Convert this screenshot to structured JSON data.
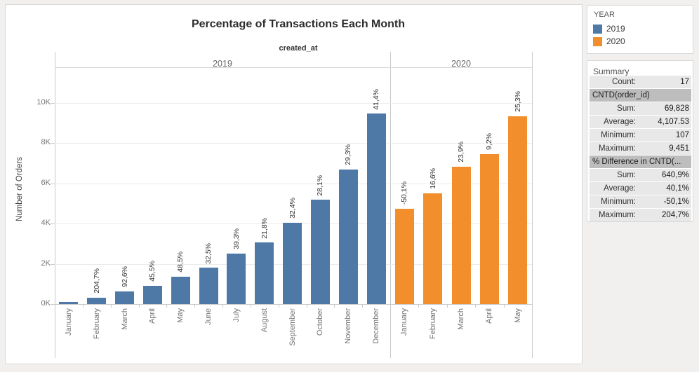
{
  "chart_data": {
    "type": "bar",
    "title": "Percentage of Transactions Each Month",
    "column_field": "created_at",
    "ylabel": "Number of Orders",
    "y_ticks": [
      {
        "value": 0,
        "label": "0K"
      },
      {
        "value": 2000,
        "label": "2K"
      },
      {
        "value": 4000,
        "label": "4K"
      },
      {
        "value": 6000,
        "label": "6K"
      },
      {
        "value": 8000,
        "label": "8K"
      },
      {
        "value": 10000,
        "label": "10K"
      }
    ],
    "ylim": [
      0,
      11760
    ],
    "grid": "horizontal",
    "panes": [
      {
        "year": "2019",
        "color": "#4e79a7",
        "months": [
          "January",
          "February",
          "March",
          "April",
          "May",
          "June",
          "July",
          "August",
          "September",
          "October",
          "November",
          "December"
        ],
        "values": [
          107,
          326,
          628,
          914,
          1357,
          1798,
          2504,
          3050,
          4038,
          5173,
          6689,
          9451
        ],
        "labels": [
          "",
          "204,7%",
          "92,6%",
          "45,5%",
          "48,5%",
          "32,5%",
          "39,3%",
          "21,8%",
          "32,4%",
          "28,1%",
          "29,3%",
          "41,4%"
        ]
      },
      {
        "year": "2020",
        "color": "#f28e2b",
        "months": [
          "January",
          "February",
          "March",
          "April",
          "May"
        ],
        "values": [
          4716,
          5499,
          6813,
          7440,
          9325
        ],
        "labels": [
          "-50,1%",
          "16,6%",
          "23,9%",
          "9,2%",
          "25,3%"
        ]
      }
    ]
  },
  "legend": {
    "title": "YEAR",
    "items": [
      {
        "label": "2019",
        "color": "#4e79a7"
      },
      {
        "label": "2020",
        "color": "#f28e2b"
      }
    ]
  },
  "summary": {
    "title": "Summary",
    "rows": [
      {
        "kind": "stat",
        "label": "Count:",
        "value": "17"
      },
      {
        "kind": "header",
        "text": "CNTD(order_id)"
      },
      {
        "kind": "stat",
        "label": "Sum:",
        "value": "69,828"
      },
      {
        "kind": "stat",
        "label": "Average:",
        "value": "4,107.53"
      },
      {
        "kind": "stat",
        "label": "Minimum:",
        "value": "107"
      },
      {
        "kind": "stat",
        "label": "Maximum:",
        "value": "9,451"
      },
      {
        "kind": "header",
        "text": "% Difference in CNTD(..."
      },
      {
        "kind": "stat",
        "label": "Sum:",
        "value": "640,9%"
      },
      {
        "kind": "stat",
        "label": "Average:",
        "value": "40,1%"
      },
      {
        "kind": "stat",
        "label": "Minimum:",
        "value": "-50,1%"
      },
      {
        "kind": "stat",
        "label": "Maximum:",
        "value": "204,7%"
      }
    ]
  }
}
